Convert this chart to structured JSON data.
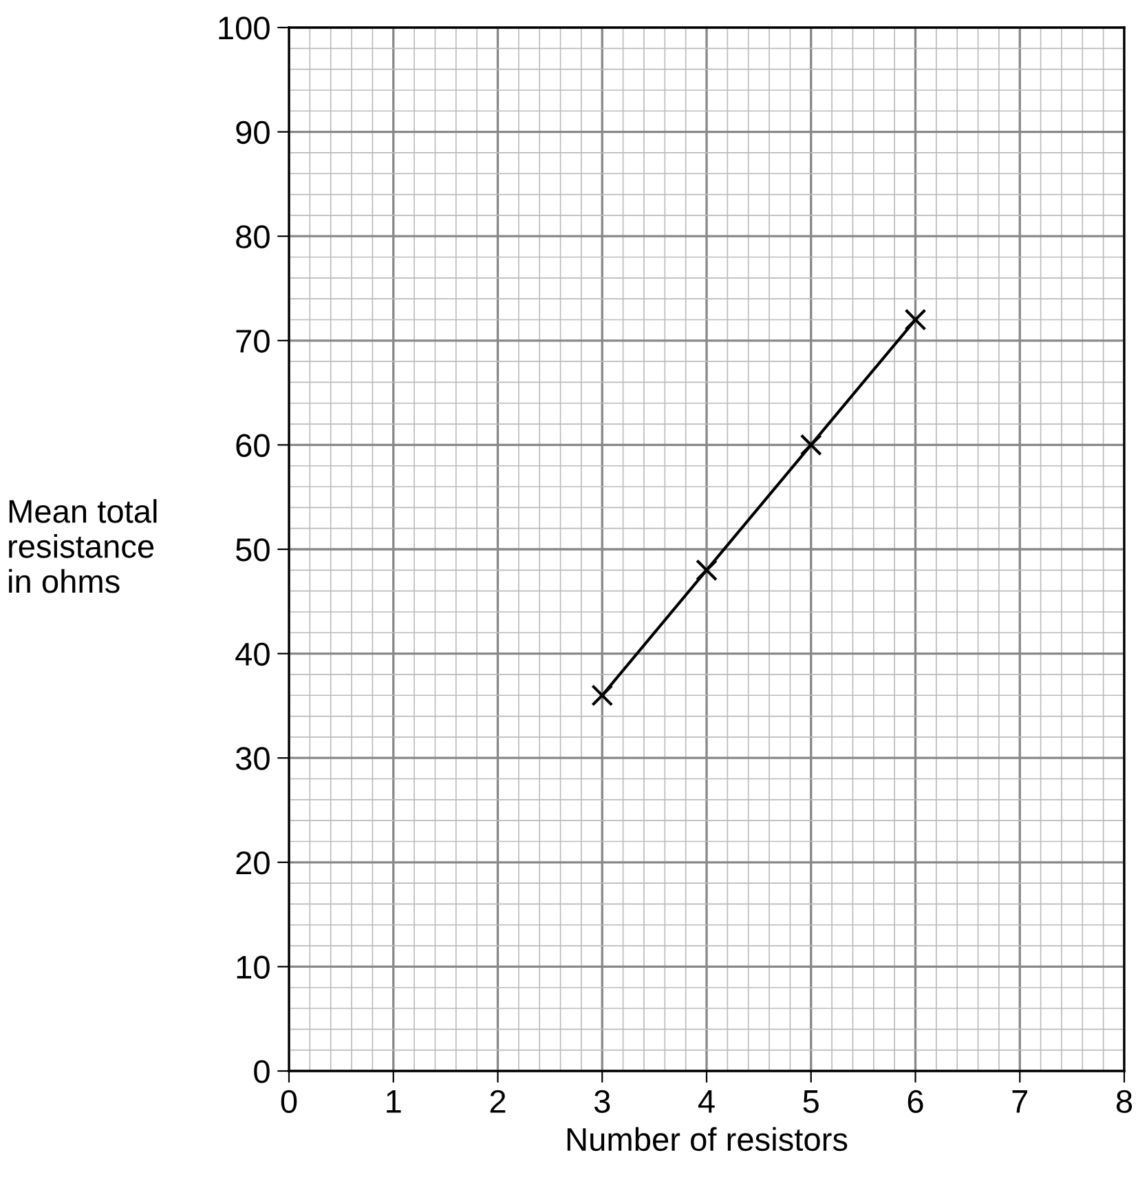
{
  "chart_data": {
    "type": "line",
    "xlabel": "Number of resistors",
    "ylabel": "Mean total\nresistance\nin ohms",
    "x": [
      3,
      4,
      5,
      6
    ],
    "series": [
      {
        "color": "#000000",
        "values": [
          36,
          48,
          60,
          72
        ]
      }
    ],
    "xlim": [
      0,
      8
    ],
    "xticks": [
      0,
      1,
      2,
      3,
      4,
      5,
      6,
      7,
      8
    ],
    "ylim": [
      0,
      100
    ],
    "yticks": [
      0,
      10,
      20,
      30,
      40,
      50,
      60,
      70,
      80,
      90,
      100
    ],
    "grid": true,
    "marker": "cross",
    "line_style": "solid"
  }
}
